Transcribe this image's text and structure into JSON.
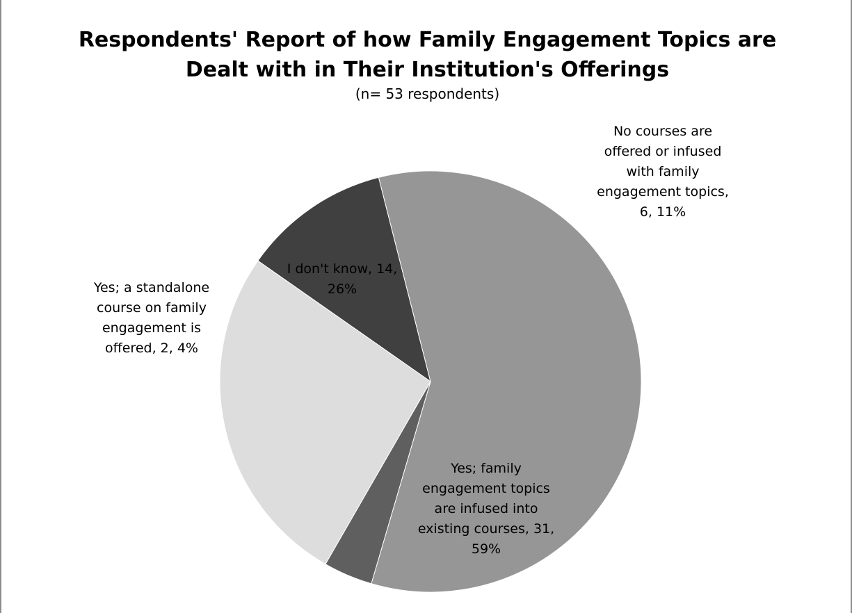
{
  "chart_data": {
    "type": "pie",
    "title_lines": [
      "Respondents' Report of how Family Engagement Topics are",
      "Dealt with in Their Institution's Offerings"
    ],
    "subtitle": "(n= 53 respondents)",
    "start_category": "No courses are offered or infused with family engagement topics",
    "direction": "clockwise",
    "slices": [
      {
        "category": "No courses are offered or infused with family engagement topics",
        "value": 6,
        "percent": 11,
        "color": "#404040",
        "label_lines": [
          "No courses are",
          "offered or infused",
          "with family",
          "engagement topics,",
          "6, 11%"
        ]
      },
      {
        "category": "Yes; family engagement topics are infused into existing courses",
        "value": 31,
        "percent": 59,
        "color": "#969696",
        "label_lines": [
          "Yes; family",
          "engagement topics",
          "are infused into",
          "existing courses, 31,",
          "59%"
        ]
      },
      {
        "category": "Yes; a standalone course on family engagement is offered",
        "value": 2,
        "percent": 4,
        "color": "#5f5f5f",
        "label_lines": [
          "Yes; a standalone",
          "course on family",
          "engagement is",
          "offered, 2, 4%"
        ]
      },
      {
        "category": "I don't know",
        "value": 14,
        "percent": 26,
        "color": "#dddddd",
        "label_lines": [
          "I don't know, 14,",
          "26%"
        ]
      }
    ]
  }
}
